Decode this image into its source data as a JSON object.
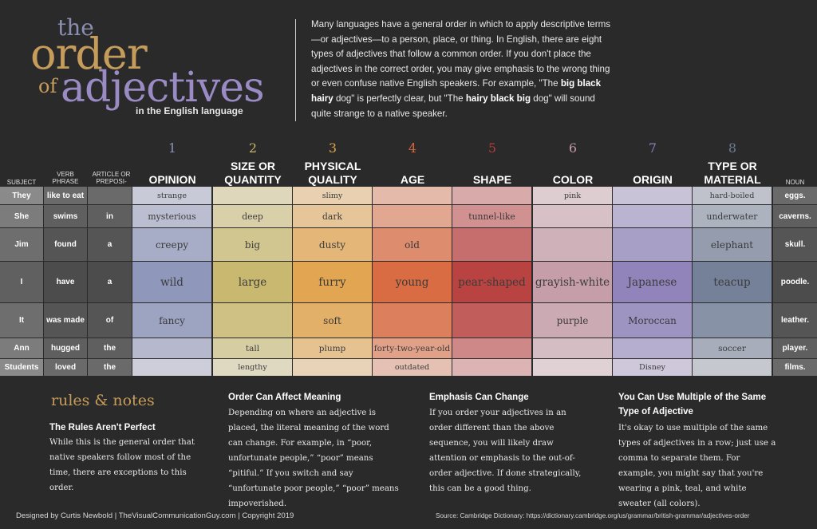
{
  "title": {
    "the": "the",
    "order": "order",
    "of": "of",
    "adjectives": "adjectives",
    "subtitle": "in the English language"
  },
  "intro": {
    "part1": "Many languages have a general order in which to apply descriptive terms—or adjectives—to a person, place, or thing.  In English, there are eight types of adjectives that follow a common order. If you don't place the adjectives in the correct order, you may give emphasis to the wrong thing or even confuse native English speakers. For example, \"The ",
    "bold1": "big black hairy",
    "part2": " dog\" is perfectly clear, but \"The ",
    "bold2": "hairy black big",
    "part3": " dog\" will sound quite strange to a native speaker."
  },
  "headers": {
    "subject": "SUBJECT",
    "verb": "VERB\nPHRASE",
    "article": "ARTICLE OR\nPREPOSI-",
    "noun": "NOUN",
    "categories": [
      {
        "num": "1",
        "label": "OPINION",
        "color": "#8a93b8"
      },
      {
        "num": "2",
        "label": "SIZE OR\nQUANTITY",
        "color": "#c7b76a"
      },
      {
        "num": "3",
        "label": "PHYSICAL\nQUALITY",
        "color": "#e1a24a"
      },
      {
        "num": "4",
        "label": "AGE",
        "color": "#d8653a"
      },
      {
        "num": "5",
        "label": "SHAPE",
        "color": "#b63a38"
      },
      {
        "num": "6",
        "label": "COLOR",
        "color": "#c39aa6"
      },
      {
        "num": "7",
        "label": "ORIGIN",
        "color": "#8b7fb8"
      },
      {
        "num": "8",
        "label": "TYPE OR\nMATERIAL",
        "color": "#6f7c95"
      }
    ]
  },
  "rows": [
    {
      "subject": "They",
      "verb": "like to eat",
      "article": "",
      "adjs": [
        "strange",
        "",
        "slimy",
        "",
        "",
        "pink",
        "",
        "hard-boiled"
      ],
      "noun": "eggs."
    },
    {
      "subject": "She",
      "verb": "swims",
      "article": "in",
      "adjs": [
        "mysterious",
        "deep",
        "dark",
        "",
        "tunnel-like",
        "",
        "",
        "underwater"
      ],
      "noun": "caverns."
    },
    {
      "subject": "Jim",
      "verb": "found",
      "article": "a",
      "adjs": [
        "creepy",
        "big",
        "dusty",
        "old",
        "",
        "",
        "",
        "elephant"
      ],
      "noun": "skull."
    },
    {
      "subject": "I",
      "verb": "have",
      "article": "a",
      "adjs": [
        "wild",
        "large",
        "furry",
        "young",
        "pear-shaped",
        "grayish-white",
        "Japanese",
        "teacup"
      ],
      "noun": "poodle."
    },
    {
      "subject": "It",
      "verb": "was made",
      "article": "of",
      "adjs": [
        "fancy",
        "",
        "soft",
        "",
        "",
        "purple",
        "Moroccan",
        ""
      ],
      "noun": "leather."
    },
    {
      "subject": "Ann",
      "verb": "hugged",
      "article": "the",
      "adjs": [
        "",
        "tall",
        "plump",
        "forty-two-year-old",
        "",
        "",
        "",
        "soccer"
      ],
      "noun": "player."
    },
    {
      "subject": "Students",
      "verb": "loved",
      "article": "the",
      "adjs": [
        "",
        "lengthy",
        "",
        "outdated",
        "",
        "",
        "Disney",
        ""
      ],
      "noun": "films."
    }
  ],
  "rules": {
    "title": "rules & notes",
    "notes": [
      {
        "heading": "The Rules Aren't Perfect",
        "body": "While this is the general order that native speakers follow most of the time, there are exceptions to this order."
      },
      {
        "heading": "Order Can Affect Meaning",
        "body": "Depending on where an adjective is placed, the literal meaning of the word can change. For example, in “poor, unfortunate people,” “poor” means “pitiful.” If you switch and say “unfortunate poor people,” “poor” means impoverished."
      },
      {
        "heading": "Emphasis Can Change",
        "body": "If you order your adjectives in an order different than the above sequence, you will likely draw attention or emphasis to the out-of-order adjective. If done strategically, this can be a good thing."
      },
      {
        "heading": "You Can Use Multiple of the Same Type of Adjective",
        "body": "It's okay to use multiple of the same types of adjectives in a row; just use a comma to separate them. For example, you might say that you're wearing a pink, teal, and white sweater (all colors)."
      }
    ]
  },
  "footer": {
    "credit": "Designed by Curtis Newbold | TheVisualCommunicationGuy.com | Copyright 2019",
    "source": "Source: Cambridge Dictionary: https://dictionary.cambridge.org/us/grammar/british-grammar/adjectives-order"
  }
}
